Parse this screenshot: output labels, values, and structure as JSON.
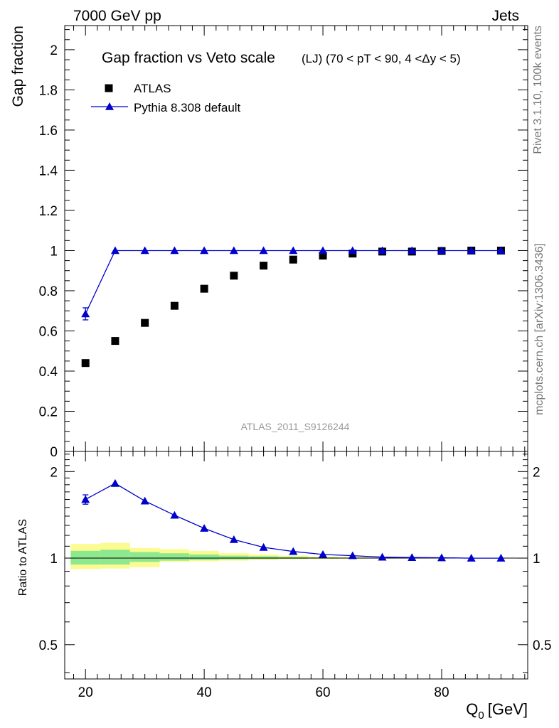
{
  "header": {
    "left_label": "7000 GeV pp",
    "right_label": "Jets",
    "side_label_top": "Rivet 3.1.10,  100k events",
    "side_label_bottom": "mcplots.cern.ch [arXiv:1306.3436]",
    "analysis_id": "ATLAS_2011_S9126244"
  },
  "chart_data": [
    {
      "type": "scatter",
      "panel": "main",
      "title": "Gap fraction vs Veto scale",
      "title_suffix": "(LJ) (70 < pT <  90, 4 <Δy < 5)",
      "ylabel": "Gap fraction",
      "xlabel": "",
      "xlim": [
        16.5,
        94.5
      ],
      "ylim": [
        0,
        2.12
      ],
      "y_ticks": [
        "0",
        "0.2",
        "0.4",
        "0.6",
        "0.8",
        "1",
        "1.2",
        "1.4",
        "1.6",
        "1.8",
        "2"
      ],
      "legend_position": "top-left",
      "series": [
        {
          "name": "ATLAS",
          "color": "#000000",
          "marker": "square",
          "x": [
            20,
            25,
            30,
            35,
            40,
            45,
            50,
            55,
            60,
            65,
            70,
            75,
            80,
            85,
            90
          ],
          "y": [
            0.44,
            0.55,
            0.64,
            0.725,
            0.81,
            0.875,
            0.925,
            0.955,
            0.975,
            0.985,
            0.995,
            0.995,
            0.998,
            1.0,
            1.0
          ]
        },
        {
          "name": "Pythia 8.308 default",
          "color": "#0000cc",
          "marker": "triangle",
          "x": [
            20,
            25,
            30,
            35,
            40,
            45,
            50,
            55,
            60,
            65,
            70,
            75,
            80,
            85,
            90
          ],
          "y": [
            0.685,
            1.0,
            1.0,
            1.0,
            1.0,
            1.0,
            1.0,
            1.0,
            1.0,
            1.0,
            1.0,
            1.0,
            1.0,
            1.0,
            1.0
          ],
          "yerr": [
            0.03,
            0,
            0,
            0,
            0,
            0,
            0,
            0,
            0,
            0,
            0,
            0,
            0,
            0,
            0
          ]
        }
      ]
    },
    {
      "type": "line",
      "panel": "ratio",
      "ylabel": "Ratio to ATLAS",
      "xlabel": "Q0 [GeV]",
      "xlabel_main": "Q",
      "xlabel_sub": "0",
      "xlabel_unit": "[GeV]",
      "xlim": [
        16.5,
        94.5
      ],
      "ylim": [
        0.38,
        2.35
      ],
      "x_ticks": [
        "20",
        "40",
        "60",
        "80"
      ],
      "y_ticks": [
        "0.5",
        "1",
        "2"
      ],
      "series": [
        {
          "name": "Pythia 8.308 default",
          "color": "#0000cc",
          "marker": "triangle",
          "x": [
            20,
            25,
            30,
            35,
            40,
            45,
            50,
            55,
            60,
            65,
            70,
            75,
            80,
            85,
            90
          ],
          "y": [
            1.6,
            1.82,
            1.58,
            1.41,
            1.27,
            1.16,
            1.09,
            1.055,
            1.03,
            1.02,
            1.008,
            1.005,
            1.003,
            1.0,
            1.0
          ],
          "yerr": [
            0.06,
            0,
            0,
            0,
            0,
            0,
            0,
            0,
            0,
            0,
            0,
            0,
            0,
            0,
            0
          ]
        }
      ],
      "bands": {
        "edges": [
          17.5,
          22.5,
          27.5,
          32.5,
          37.5,
          42.5,
          47.5,
          52.5,
          57.5,
          62.5,
          67.5,
          72.5,
          77.5,
          82.5,
          87.5,
          92.5
        ],
        "stat": [
          [
            0.95,
            1.06
          ],
          [
            0.95,
            1.07
          ],
          [
            0.97,
            1.05
          ],
          [
            0.98,
            1.04
          ],
          [
            0.985,
            1.03
          ],
          [
            0.99,
            1.02
          ],
          [
            0.993,
            1.015
          ],
          [
            0.995,
            1.01
          ],
          [
            0.997,
            1.006
          ],
          [
            0.998,
            1.004
          ],
          [
            0.999,
            1.003
          ],
          [
            0.999,
            1.002
          ],
          [
            0.999,
            1.002
          ],
          [
            1.0,
            1.001
          ],
          [
            1.0,
            1.001
          ]
        ],
        "syst": [
          [
            0.915,
            1.12
          ],
          [
            0.92,
            1.13
          ],
          [
            0.93,
            1.085
          ],
          [
            0.97,
            1.075
          ],
          [
            0.975,
            1.06
          ],
          [
            0.98,
            1.04
          ],
          [
            0.985,
            1.03
          ],
          [
            0.99,
            1.02
          ],
          [
            0.993,
            1.012
          ],
          [
            0.995,
            1.008
          ],
          [
            0.997,
            1.005
          ],
          [
            0.998,
            1.004
          ],
          [
            0.998,
            1.003
          ],
          [
            0.999,
            1.002
          ],
          [
            0.999,
            1.002
          ]
        ],
        "stat_color": "#8ee88e",
        "syst_color": "#fbfb92"
      }
    }
  ]
}
